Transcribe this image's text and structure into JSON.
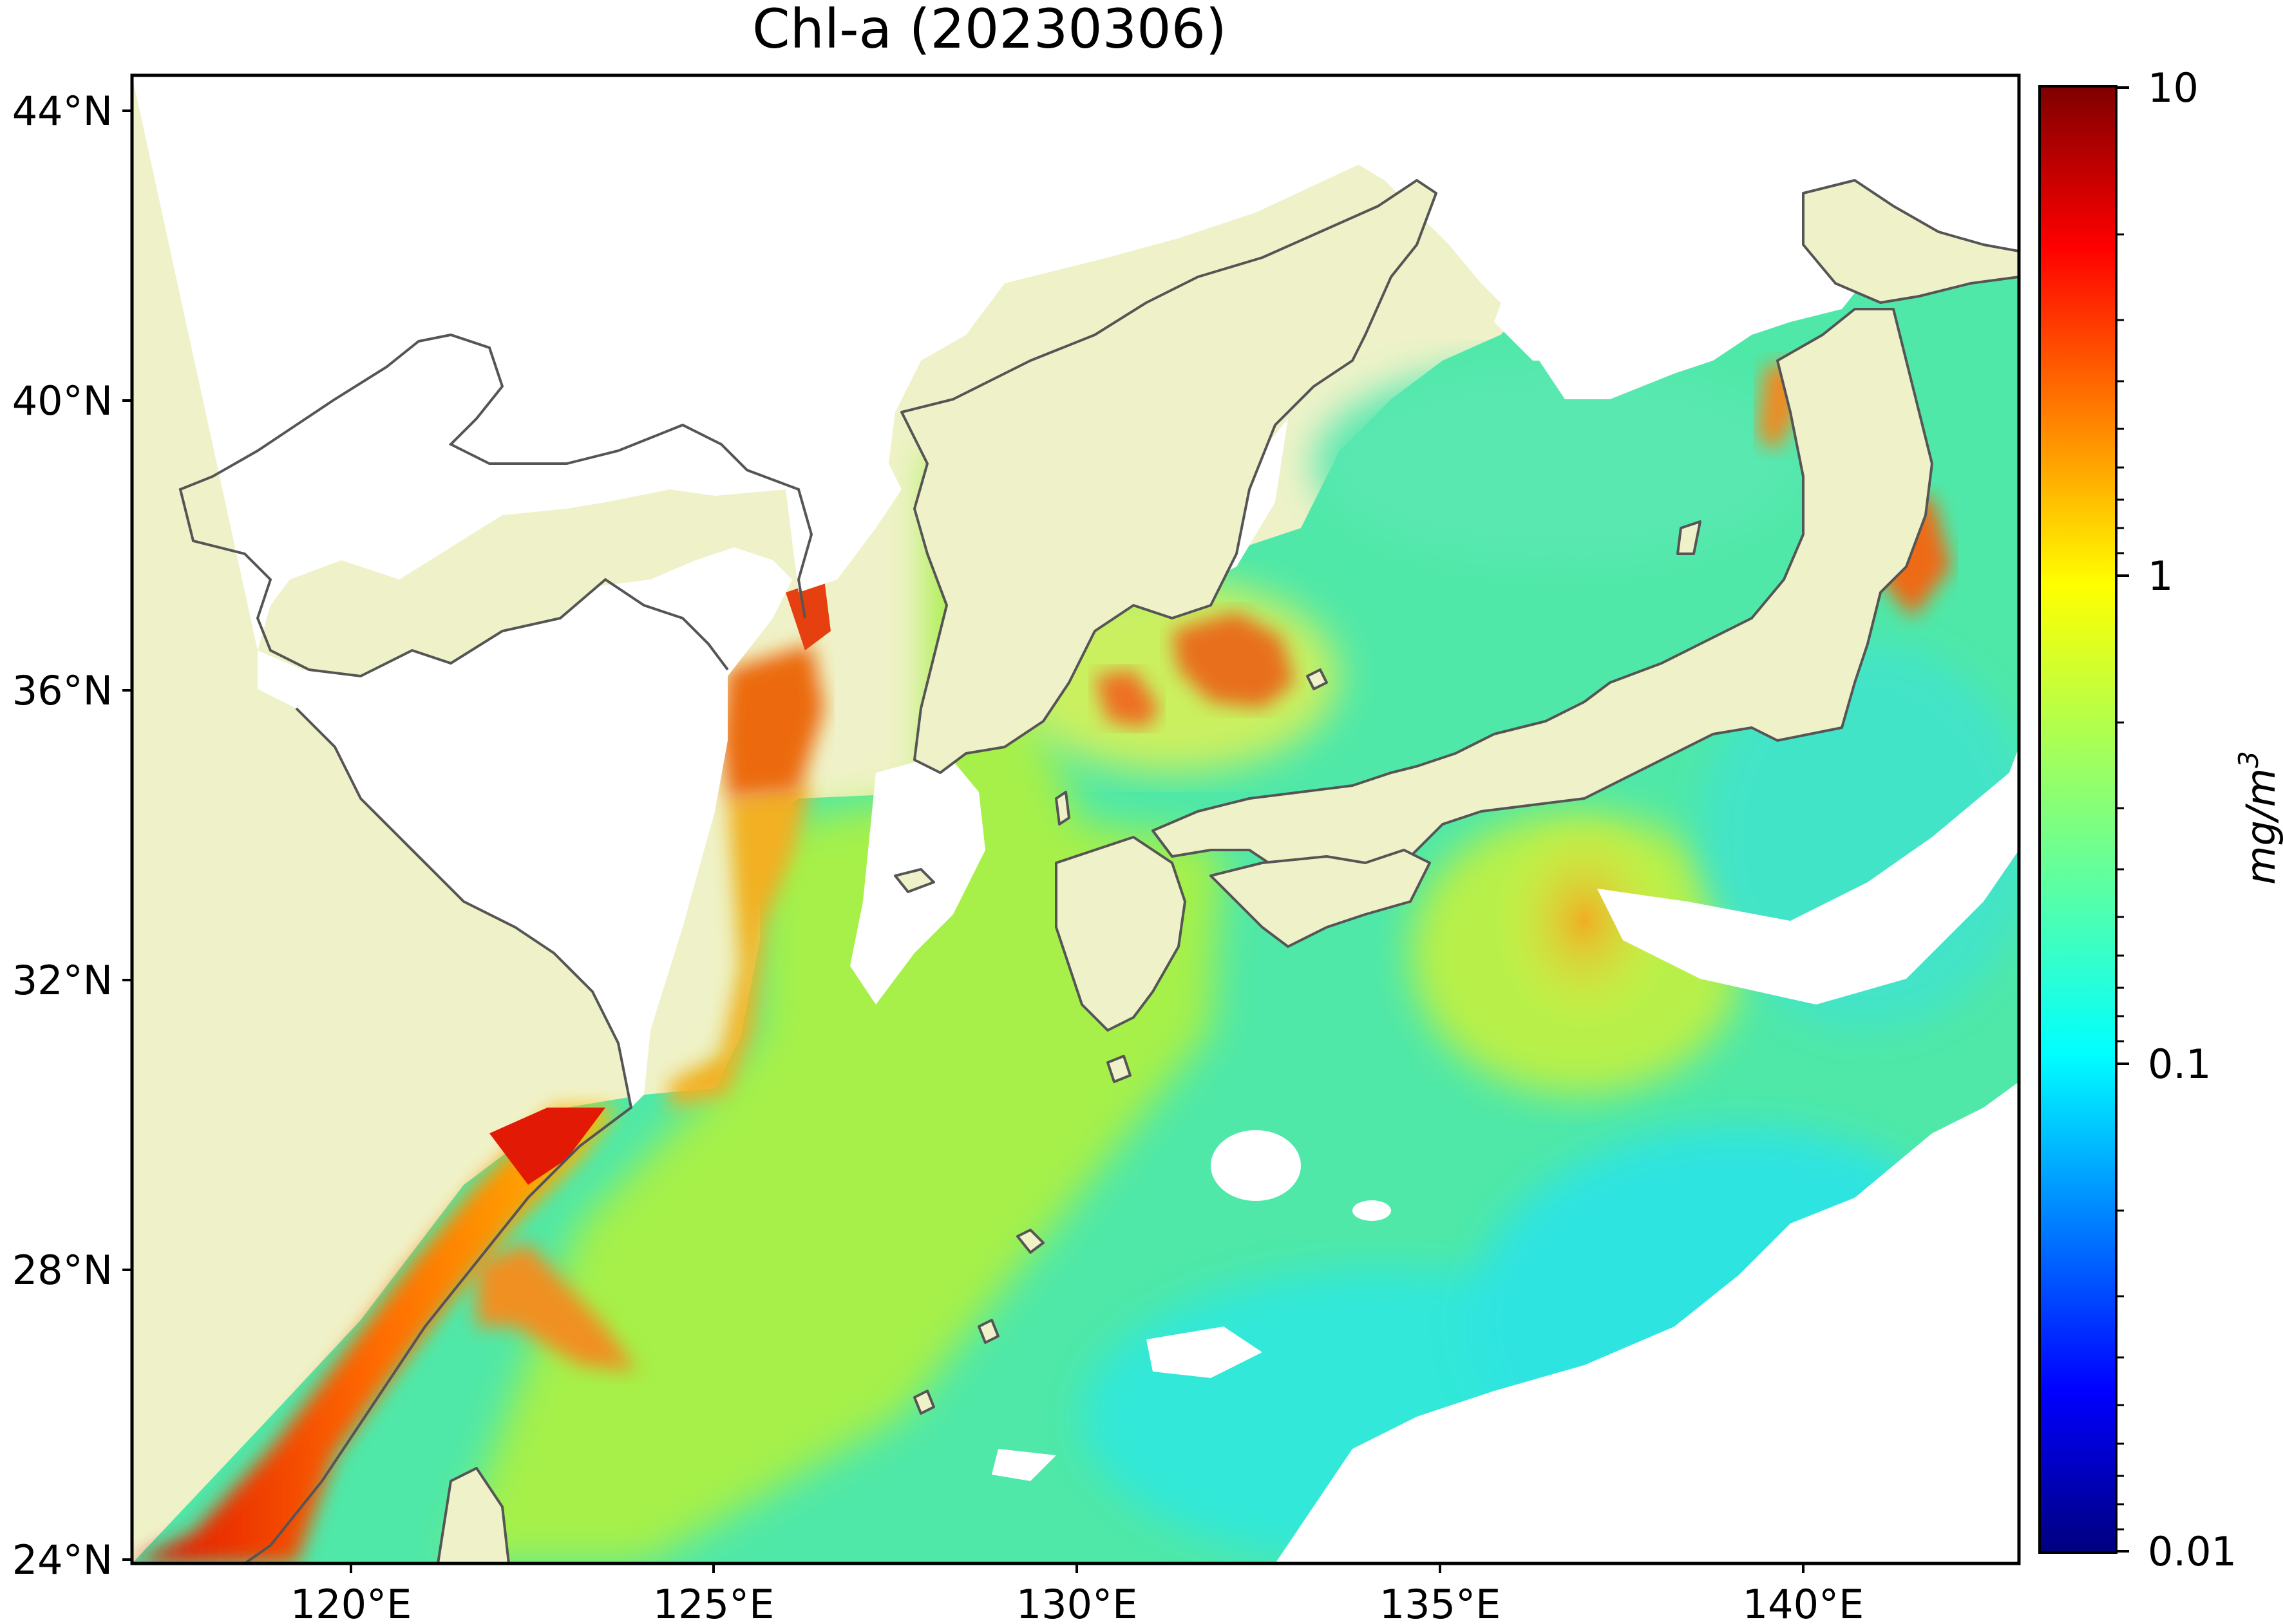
{
  "map": {
    "title": "Chl-a (20230306)",
    "lat_labels": [
      "44°N",
      "40°N",
      "36°N",
      "32°N",
      "28°N",
      "24°N"
    ],
    "lon_labels": [
      "120°E",
      "125°E",
      "130°E",
      "135°E",
      "140°E"
    ],
    "extent": {
      "lon": [
        117,
        143
      ],
      "lat": [
        24,
        44.5
      ]
    },
    "land_color": "#eff2c8",
    "coastline_color": "#555555",
    "no_data_color": "#ffffff"
  },
  "colorbar": {
    "label": "mg/m",
    "label_sup": "3",
    "tick_labels": [
      "10",
      "1",
      "0.1",
      "0.01"
    ],
    "scale": "log",
    "range": [
      0.01,
      10
    ],
    "colormap": "jet",
    "colors": [
      "#00007f",
      "#0000ff",
      "#007fff",
      "#00ffff",
      "#7fff7f",
      "#ffff00",
      "#ff7f00",
      "#ff0000",
      "#7f0000"
    ]
  }
}
